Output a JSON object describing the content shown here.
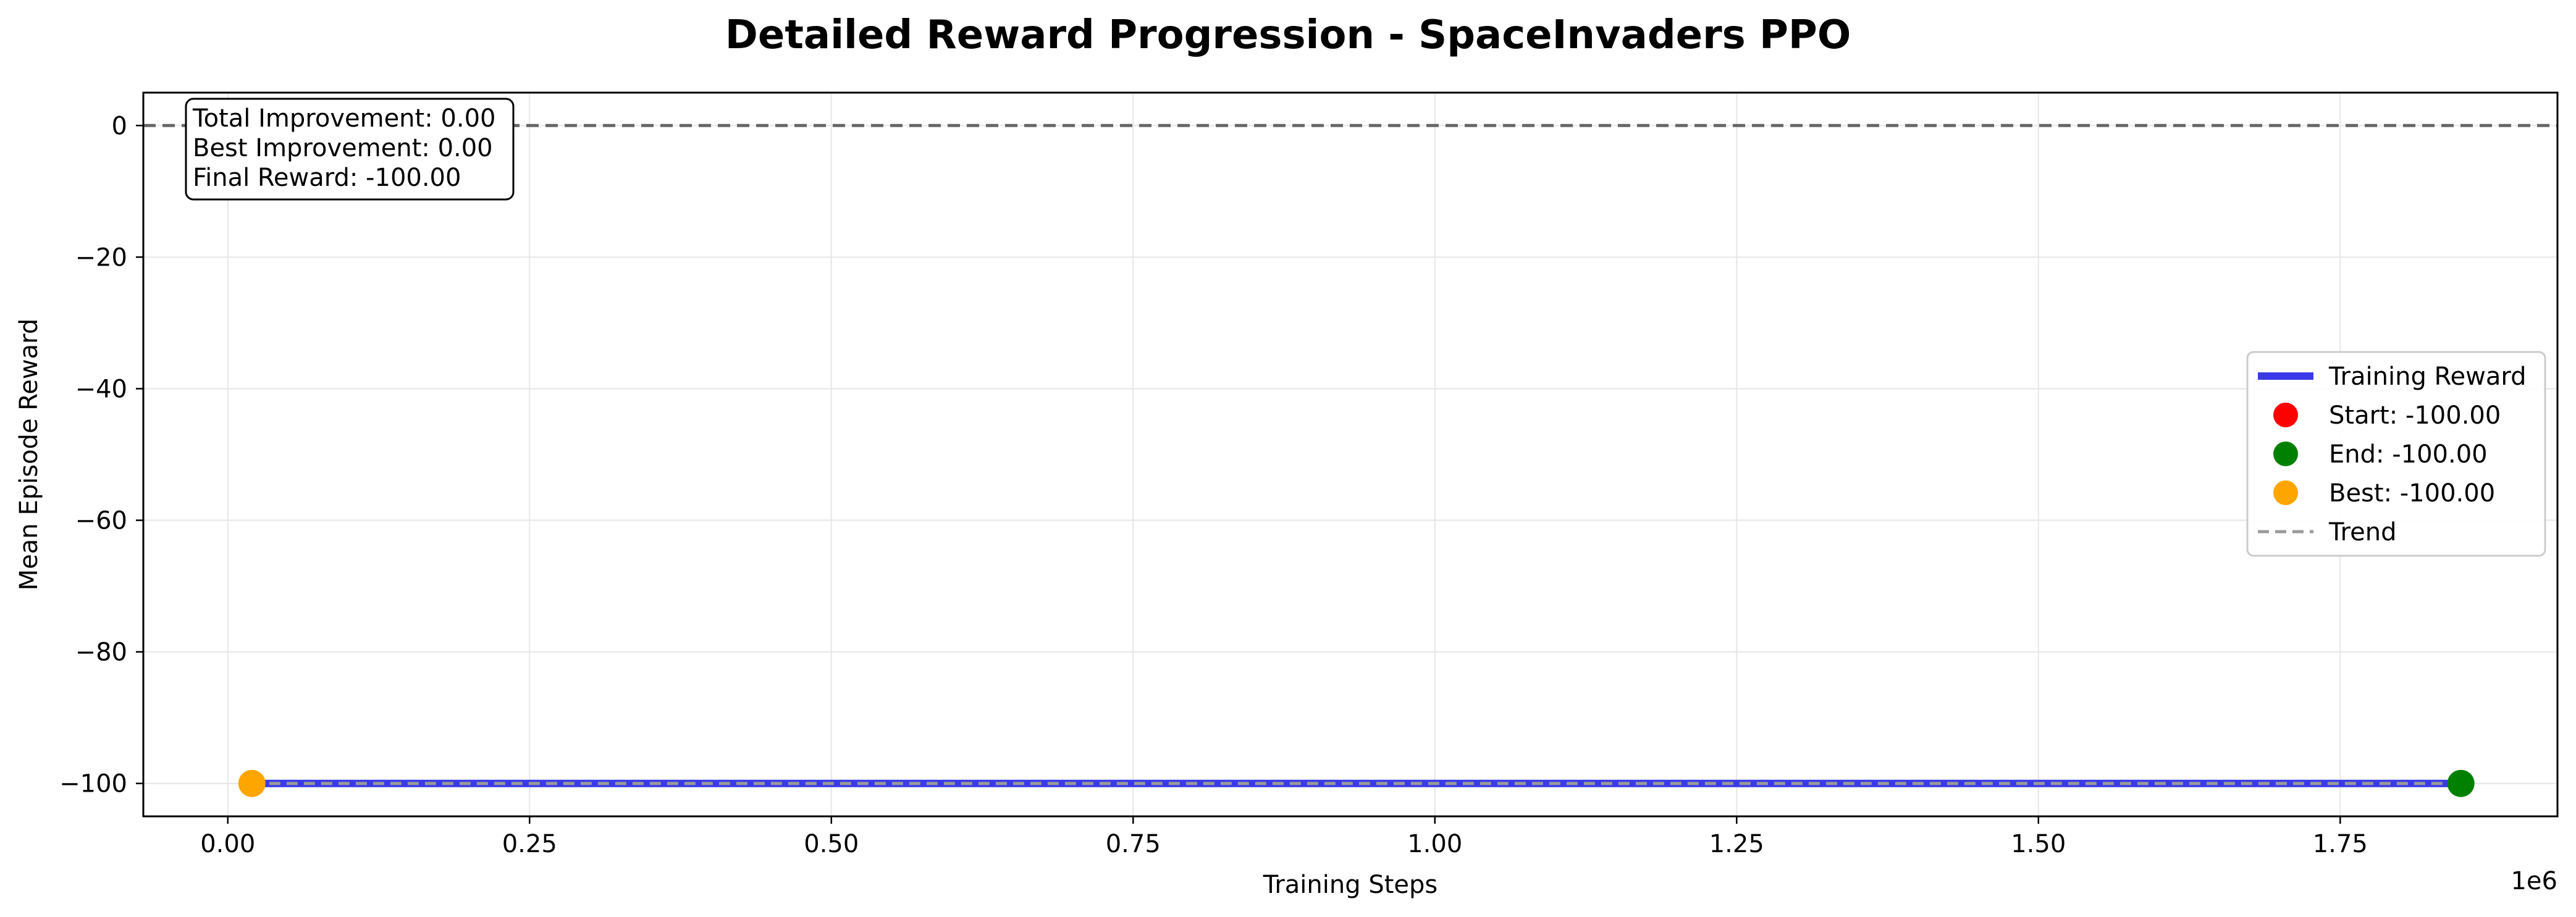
{
  "chart_data": {
    "type": "line",
    "title": "Detailed Reward Progression - SpaceInvaders PPO",
    "xlabel": "Training Steps",
    "ylabel": "Mean Episode Reward",
    "x_offset_label": "1e6",
    "xlim": [
      -0.07,
      1.93
    ],
    "ylim": [
      -105,
      5
    ],
    "x_ticks": [
      0.0,
      0.25,
      0.5,
      0.75,
      1.0,
      1.25,
      1.5,
      1.75
    ],
    "x_tick_labels": [
      "0.00",
      "0.25",
      "0.50",
      "0.75",
      "1.00",
      "1.25",
      "1.50",
      "1.75"
    ],
    "y_ticks": [
      0,
      -20,
      -40,
      -60,
      -80,
      -100
    ],
    "y_tick_labels": [
      "0",
      "−20",
      "−40",
      "−60",
      "−80",
      "−100"
    ],
    "grid": true,
    "legend_position": "center-right",
    "reference_line": {
      "y": 0,
      "color": "#666666",
      "style": "dashed"
    },
    "series": [
      {
        "name": "Training Reward",
        "kind": "line",
        "color": "#3a3ae8",
        "x": [
          0.02,
          1.85
        ],
        "y": [
          -100,
          -100
        ]
      },
      {
        "name": "Trend",
        "kind": "dashed-line",
        "color": "#999999",
        "x": [
          0.02,
          1.85
        ],
        "y": [
          -100,
          -100
        ]
      }
    ],
    "markers": [
      {
        "name": "Start: -100.00",
        "color": "#ff0000",
        "x": 0.02,
        "y": -100,
        "visible": false
      },
      {
        "name": "End: -100.00",
        "color": "#008000",
        "x": 1.85,
        "y": -100,
        "visible": true
      },
      {
        "name": "Best: -100.00",
        "color": "#ffa500",
        "x": 0.02,
        "y": -100,
        "visible": true
      }
    ],
    "annotation_lines": [
      "Total Improvement: 0.00",
      "Best Improvement: 0.00",
      "Final Reward: -100.00"
    ]
  }
}
